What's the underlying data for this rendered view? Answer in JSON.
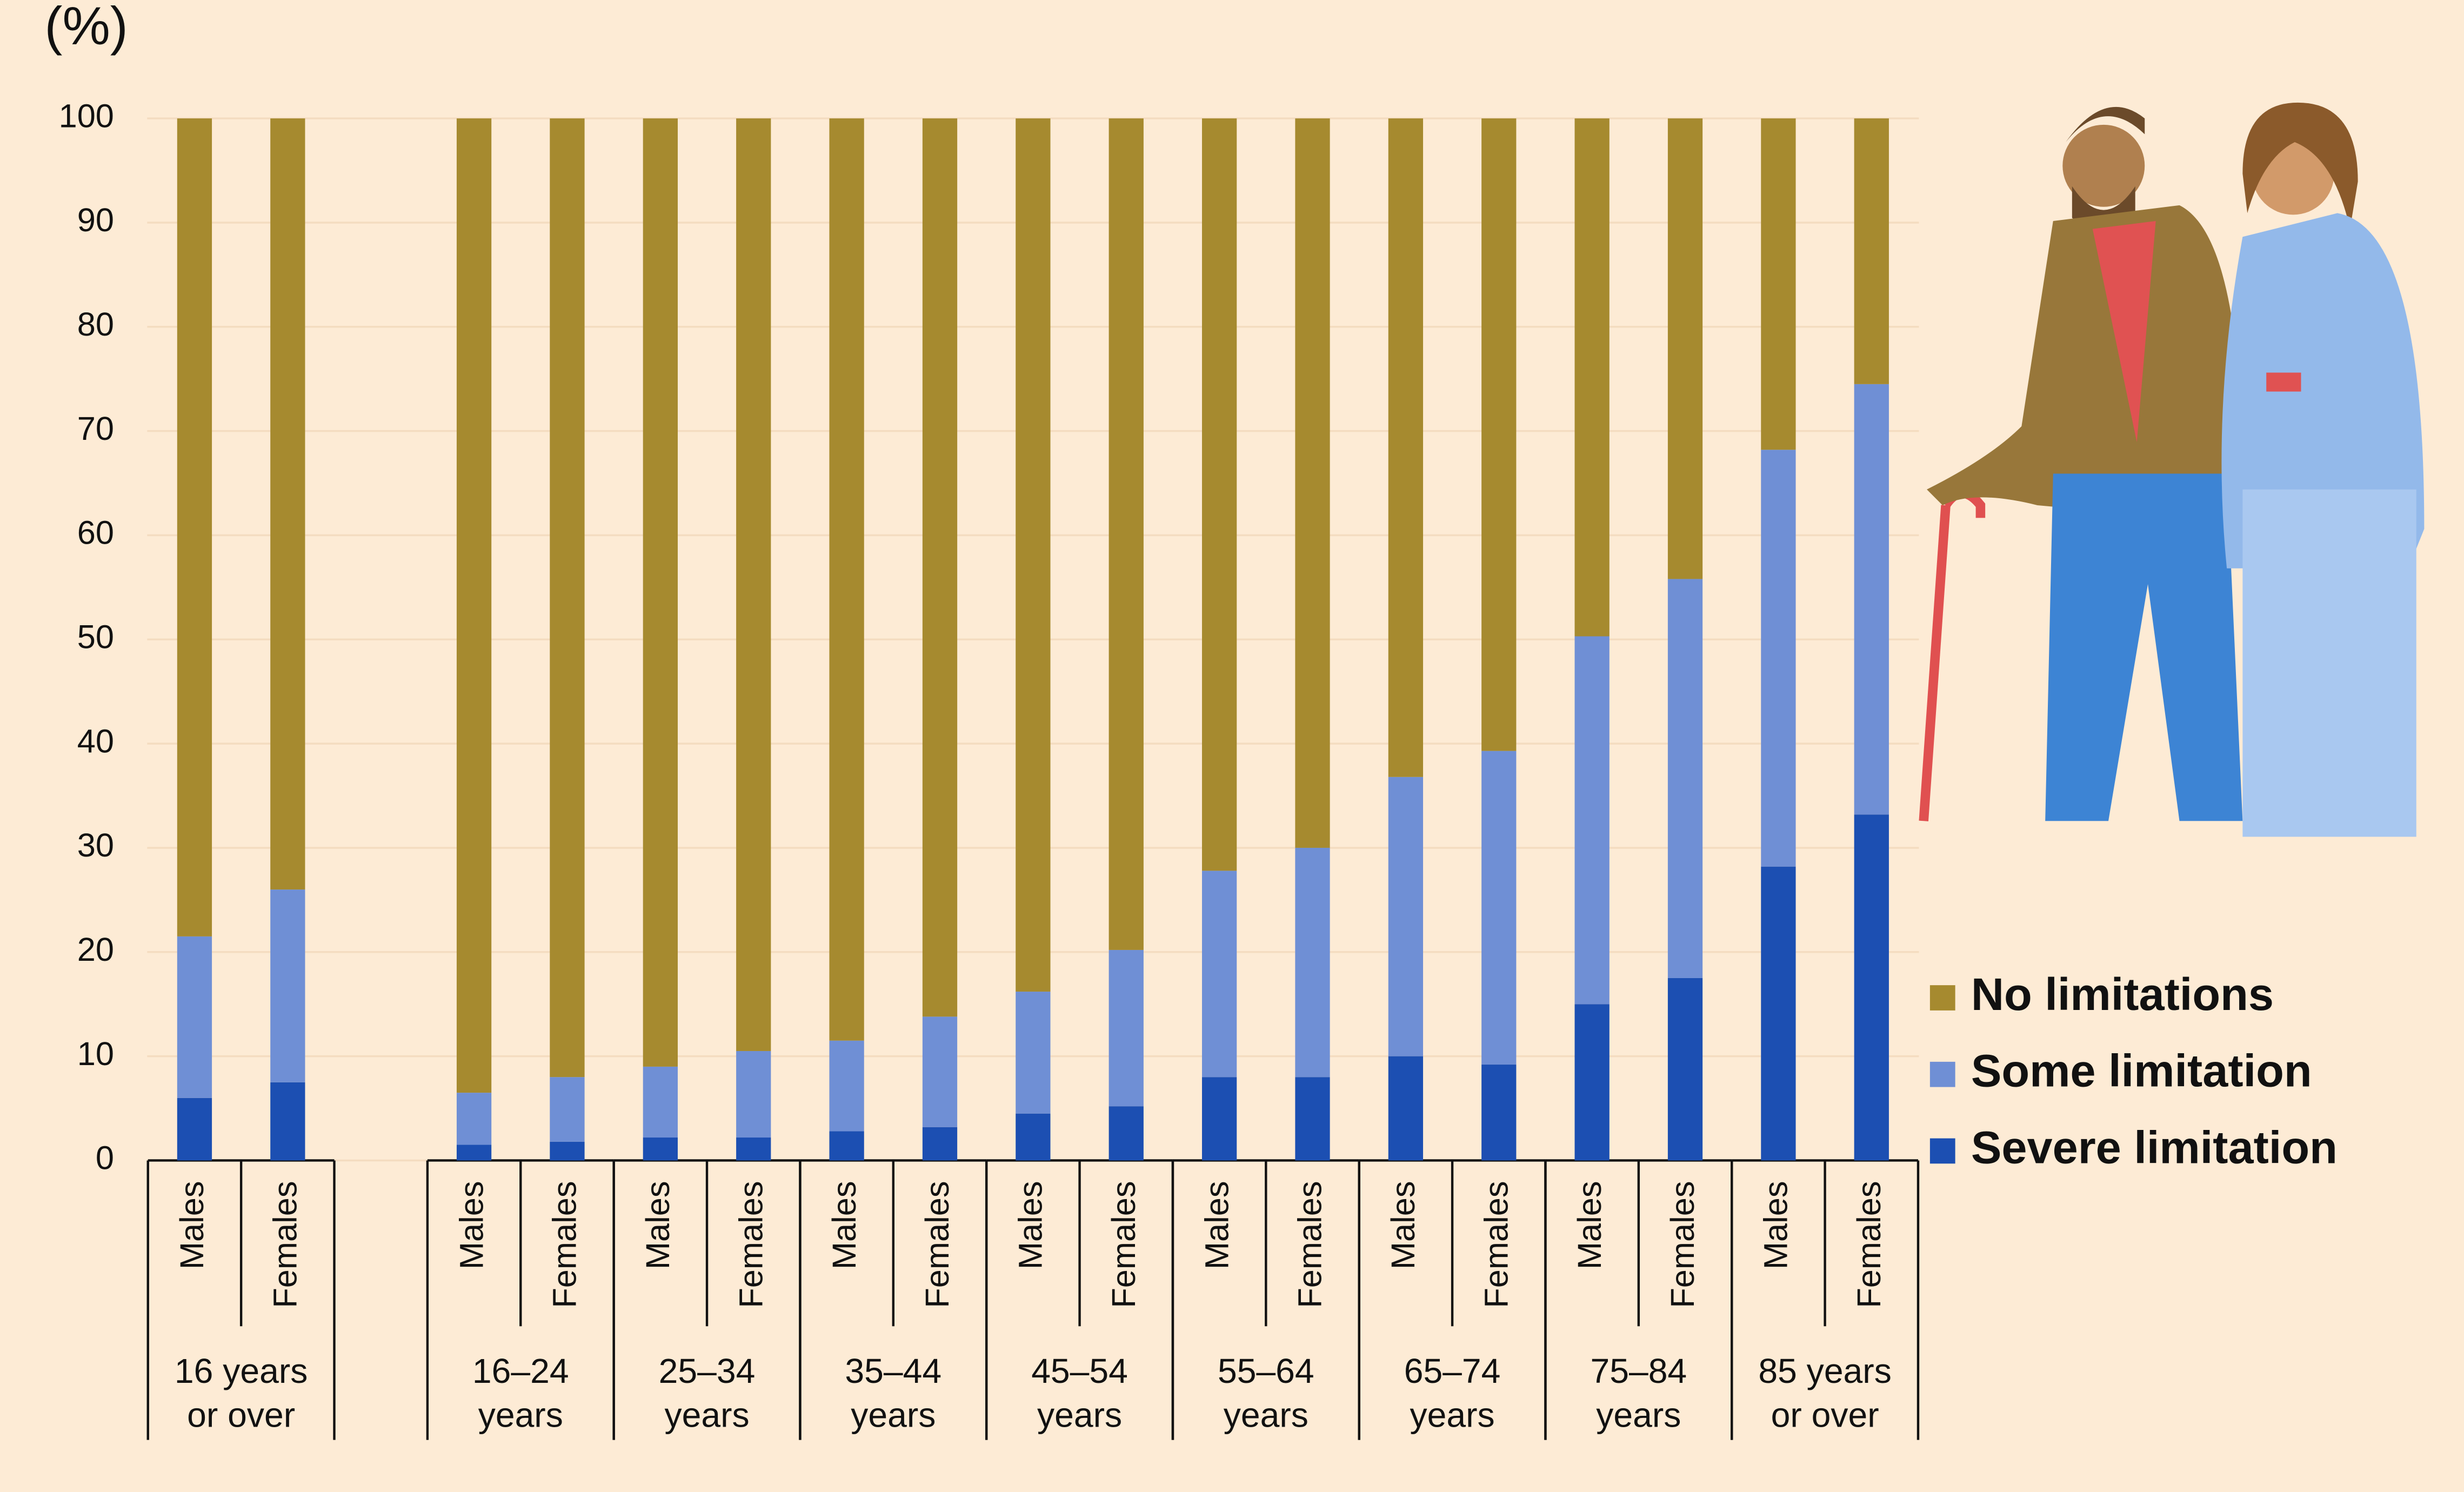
{
  "chart_data": {
    "type": "stacked_bar",
    "ylabel": "(%)",
    "groups": [
      {
        "label": [
          "16 years",
          "or over"
        ],
        "categories": [
          "Males",
          "Females"
        ]
      },
      {
        "label": [
          "16–24",
          "years"
        ],
        "categories": [
          "Males",
          "Females"
        ]
      },
      {
        "label": [
          "25–34",
          "years"
        ],
        "categories": [
          "Males",
          "Females"
        ]
      },
      {
        "label": [
          "35–44",
          "years"
        ],
        "categories": [
          "Males",
          "Females"
        ]
      },
      {
        "label": [
          "45–54",
          "years"
        ],
        "categories": [
          "Males",
          "Females"
        ]
      },
      {
        "label": [
          "55–64",
          "years"
        ],
        "categories": [
          "Males",
          "Females"
        ]
      },
      {
        "label": [
          "65–74",
          "years"
        ],
        "categories": [
          "Males",
          "Females"
        ]
      },
      {
        "label": [
          "75–84",
          "years"
        ],
        "categories": [
          "Males",
          "Females"
        ]
      },
      {
        "label": [
          "85 years",
          "or over"
        ],
        "categories": [
          "Males",
          "Females"
        ]
      }
    ],
    "series": [
      {
        "name": "Severe limitation",
        "color": "#1c4fb2",
        "values": [
          6,
          7.5,
          1.5,
          1.8,
          2.2,
          2.2,
          2.8,
          3.2,
          4.5,
          5.2,
          8,
          8,
          10,
          9.2,
          15,
          17.5,
          28.2,
          33.2
        ]
      },
      {
        "name": "Some limitation",
        "color": "#6f8fd5",
        "values": [
          15.5,
          18.5,
          5,
          6.2,
          6.8,
          8.3,
          8.7,
          10.6,
          11.7,
          15,
          19.8,
          22,
          26.8,
          30.1,
          35.3,
          38.3,
          40,
          41.3
        ]
      },
      {
        "name": "No limitations",
        "color": "#a68a2f",
        "values": [
          78.5,
          74,
          93.5,
          92,
          91,
          89.5,
          88.5,
          86.2,
          83.8,
          79.8,
          72.2,
          70,
          63.2,
          60.7,
          49.7,
          44.2,
          31.8,
          25.5
        ]
      }
    ],
    "ylim": [
      0,
      100
    ],
    "yticks": [
      0,
      10,
      20,
      30,
      40,
      50,
      60,
      70,
      80,
      90,
      100
    ],
    "grid": true
  }
}
